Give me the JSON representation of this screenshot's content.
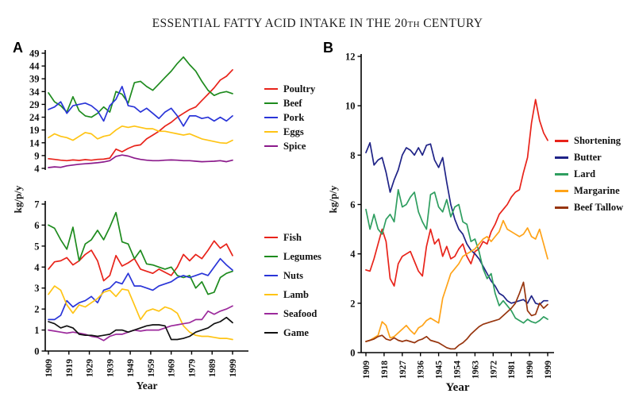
{
  "title": {
    "main": "ESSENTIAL FATTY ACID INTAKE IN THE 20",
    "sup": "TH",
    "tail": " CENTURY"
  },
  "panels": {
    "a": {
      "label": "A",
      "ylabel": "kg/p/y",
      "xlabel": "Year"
    },
    "b": {
      "label": "B",
      "ylabel": "kg/p/y",
      "xlabel": "Year"
    }
  },
  "chart_data": [
    {
      "id": "a_top",
      "type": "line",
      "panel": "A",
      "ylabel": "kg/p/y",
      "xlabel": "",
      "xlim": [
        1909,
        1999
      ],
      "ylim": [
        4,
        49
      ],
      "yticks": [
        4,
        9,
        14,
        19,
        24,
        29,
        34,
        39,
        44,
        49
      ],
      "xticks": [
        1909,
        1919,
        1929,
        1939,
        1949,
        1959,
        1969,
        1979,
        1989,
        1999
      ],
      "grid": false,
      "legend_position": "right",
      "x": [
        1909,
        1912,
        1915,
        1918,
        1921,
        1924,
        1927,
        1930,
        1933,
        1936,
        1939,
        1942,
        1945,
        1948,
        1951,
        1954,
        1957,
        1960,
        1963,
        1966,
        1969,
        1972,
        1975,
        1978,
        1981,
        1984,
        1987,
        1990,
        1993,
        1996,
        1999
      ],
      "series": [
        {
          "name": "Poultry",
          "color": "#e8231a",
          "values": [
            7.8,
            7.5,
            7.2,
            7.0,
            7.3,
            7.1,
            7.4,
            7.2,
            7.5,
            7.6,
            8.0,
            11.5,
            10.5,
            11.8,
            12.8,
            13.2,
            15.5,
            17.0,
            18.5,
            20.5,
            22.0,
            24.0,
            25.5,
            27.0,
            28.0,
            30.5,
            33.0,
            35.5,
            38.5,
            40.0,
            42.5
          ]
        },
        {
          "name": "Beef",
          "color": "#1e8b1e",
          "values": [
            33.5,
            30.0,
            28.5,
            26.0,
            32.0,
            26.5,
            24.5,
            24.0,
            25.5,
            28.0,
            26.0,
            34.0,
            33.0,
            29.5,
            37.5,
            38.0,
            36.0,
            34.5,
            37.0,
            39.5,
            42.0,
            45.0,
            47.5,
            44.5,
            42.0,
            38.0,
            34.5,
            32.5,
            33.5,
            34.0,
            33.2
          ]
        },
        {
          "name": "Pork",
          "color": "#2a35d8",
          "values": [
            27.0,
            28.0,
            30.0,
            25.5,
            28.5,
            29.0,
            29.5,
            28.5,
            26.5,
            22.5,
            28.5,
            31.0,
            36.0,
            28.5,
            28.0,
            26.0,
            27.5,
            25.5,
            23.5,
            26.0,
            27.5,
            24.5,
            20.5,
            24.5,
            24.5,
            23.5,
            24.0,
            22.5,
            24.0,
            22.5,
            24.5
          ]
        },
        {
          "name": "Eggs",
          "color": "#ffc414",
          "values": [
            16.0,
            17.5,
            16.5,
            16.0,
            15.0,
            16.5,
            18.0,
            17.5,
            15.5,
            16.5,
            17.0,
            19.0,
            20.5,
            20.0,
            20.5,
            20.0,
            19.5,
            19.5,
            18.5,
            18.5,
            18.0,
            17.5,
            17.0,
            17.5,
            16.5,
            15.5,
            15.0,
            14.5,
            14.0,
            13.8,
            15.0
          ]
        },
        {
          "name": "Spice",
          "color": "#8b1a8b",
          "values": [
            4.3,
            4.6,
            4.4,
            5.0,
            5.3,
            5.6,
            5.8,
            6.0,
            6.2,
            6.5,
            7.0,
            8.7,
            9.2,
            8.8,
            8.0,
            7.5,
            7.2,
            7.0,
            7.0,
            7.2,
            7.3,
            7.2,
            7.0,
            7.0,
            6.8,
            6.6,
            6.7,
            6.8,
            7.0,
            6.6,
            7.2
          ]
        }
      ]
    },
    {
      "id": "a_bottom",
      "type": "line",
      "panel": "A",
      "ylabel": "kg/p/y",
      "xlabel": "Year",
      "xlim": [
        1909,
        1999
      ],
      "ylim": [
        0,
        7
      ],
      "yticks": [
        0,
        1,
        2,
        3,
        4,
        5,
        6,
        7
      ],
      "xticks": [
        1909,
        1919,
        1929,
        1939,
        1949,
        1959,
        1969,
        1979,
        1989,
        1999
      ],
      "grid": false,
      "legend_position": "right",
      "x": [
        1909,
        1912,
        1915,
        1918,
        1921,
        1924,
        1927,
        1930,
        1933,
        1936,
        1939,
        1942,
        1945,
        1948,
        1951,
        1954,
        1957,
        1960,
        1963,
        1966,
        1969,
        1972,
        1975,
        1978,
        1981,
        1984,
        1987,
        1990,
        1993,
        1996,
        1999
      ],
      "series": [
        {
          "name": "Fish",
          "color": "#e8231a",
          "values": [
            3.9,
            4.25,
            4.3,
            4.45,
            4.1,
            4.3,
            4.6,
            4.8,
            4.3,
            3.35,
            3.6,
            4.55,
            4.05,
            4.2,
            4.4,
            3.9,
            3.8,
            3.7,
            3.9,
            3.75,
            3.6,
            4.0,
            4.6,
            4.3,
            4.6,
            4.4,
            4.8,
            5.25,
            4.9,
            5.1,
            4.55
          ]
        },
        {
          "name": "Legumes",
          "color": "#1e8b1e",
          "values": [
            6.0,
            5.85,
            5.3,
            4.85,
            5.9,
            4.3,
            5.1,
            5.3,
            5.75,
            5.3,
            5.9,
            6.6,
            5.2,
            5.1,
            4.4,
            4.8,
            4.15,
            4.1,
            4.0,
            3.9,
            4.0,
            3.6,
            3.5,
            3.6,
            3.0,
            3.3,
            2.7,
            2.8,
            3.5,
            3.7,
            3.8
          ]
        },
        {
          "name": "Nuts",
          "color": "#2a35d8",
          "values": [
            1.5,
            1.5,
            1.7,
            2.4,
            2.1,
            2.3,
            2.4,
            2.6,
            2.3,
            2.9,
            3.0,
            3.3,
            3.2,
            3.7,
            3.1,
            3.1,
            3.0,
            2.9,
            3.1,
            3.2,
            3.3,
            3.5,
            3.6,
            3.5,
            3.6,
            3.7,
            3.6,
            4.0,
            4.4,
            4.1,
            3.85
          ]
        },
        {
          "name": "Lamb",
          "color": "#ffc414",
          "values": [
            2.7,
            3.1,
            2.9,
            2.2,
            1.8,
            2.2,
            2.1,
            2.3,
            2.5,
            2.8,
            2.9,
            2.6,
            2.95,
            2.9,
            2.2,
            1.5,
            1.9,
            2.0,
            1.9,
            2.1,
            2.0,
            1.8,
            1.2,
            0.9,
            0.75,
            0.7,
            0.7,
            0.65,
            0.6,
            0.6,
            0.55
          ]
        },
        {
          "name": "Seafood",
          "color": "#9c2a9c",
          "values": [
            1.0,
            0.95,
            0.9,
            0.85,
            0.9,
            0.85,
            0.8,
            0.7,
            0.65,
            0.5,
            0.7,
            0.8,
            0.8,
            0.9,
            1.0,
            0.95,
            1.0,
            1.0,
            1.0,
            1.1,
            1.2,
            1.25,
            1.3,
            1.35,
            1.5,
            1.5,
            1.9,
            1.75,
            1.9,
            2.0,
            2.15
          ]
        },
        {
          "name": "Game",
          "color": "#111111",
          "values": [
            1.4,
            1.3,
            1.1,
            1.2,
            1.1,
            0.8,
            0.75,
            0.75,
            0.7,
            0.75,
            0.8,
            1.0,
            1.0,
            0.9,
            1.0,
            1.1,
            1.2,
            1.25,
            1.25,
            1.2,
            0.55,
            0.55,
            0.6,
            0.7,
            0.9,
            1.0,
            1.1,
            1.3,
            1.4,
            1.6,
            1.35
          ]
        }
      ]
    },
    {
      "id": "b",
      "type": "line",
      "panel": "B",
      "ylabel": "kg/p/y",
      "xlabel": "Year",
      "xlim": [
        1909,
        1999
      ],
      "ylim": [
        0,
        12
      ],
      "yticks": [
        0,
        2,
        4,
        6,
        8,
        10,
        12
      ],
      "xticks": [
        1909,
        1918,
        1927,
        1936,
        1945,
        1954,
        1963,
        1972,
        1981,
        1990,
        1999
      ],
      "grid": false,
      "legend_position": "right",
      "x": [
        1909,
        1911,
        1913,
        1915,
        1917,
        1919,
        1921,
        1923,
        1925,
        1927,
        1929,
        1931,
        1933,
        1935,
        1937,
        1939,
        1941,
        1943,
        1945,
        1947,
        1949,
        1951,
        1953,
        1955,
        1957,
        1959,
        1961,
        1963,
        1965,
        1967,
        1969,
        1971,
        1973,
        1975,
        1977,
        1979,
        1981,
        1983,
        1985,
        1987,
        1989,
        1991,
        1993,
        1995,
        1997,
        1999
      ],
      "series": [
        {
          "name": "Shortening",
          "color": "#e8231a",
          "values": [
            3.35,
            3.3,
            3.8,
            4.4,
            5.0,
            4.5,
            3.0,
            2.7,
            3.6,
            3.9,
            4.0,
            4.1,
            3.7,
            3.3,
            3.1,
            4.3,
            5.0,
            4.4,
            4.6,
            3.9,
            4.3,
            3.8,
            3.9,
            4.2,
            4.4,
            3.9,
            3.6,
            4.1,
            4.2,
            4.5,
            4.4,
            4.9,
            5.2,
            5.6,
            5.8,
            6.0,
            6.3,
            6.5,
            6.6,
            7.3,
            7.9,
            9.3,
            10.25,
            9.4,
            8.9,
            8.6
          ]
        },
        {
          "name": "Butter",
          "color": "#1f2387",
          "values": [
            8.1,
            8.5,
            7.6,
            7.8,
            7.9,
            7.3,
            6.5,
            7.0,
            7.4,
            8.0,
            8.3,
            8.2,
            8.0,
            8.3,
            8.0,
            8.4,
            8.45,
            7.8,
            7.5,
            7.9,
            6.9,
            6.0,
            5.4,
            5.0,
            4.8,
            4.4,
            4.15,
            4.0,
            3.8,
            3.5,
            3.2,
            2.9,
            2.7,
            2.4,
            2.3,
            2.1,
            2.0,
            2.05,
            2.1,
            2.15,
            2.0,
            2.3,
            2.0,
            1.95,
            2.1,
            2.1
          ]
        },
        {
          "name": "Lard",
          "color": "#2f9e60",
          "values": [
            5.8,
            5.0,
            5.6,
            5.0,
            4.8,
            5.4,
            5.6,
            5.3,
            6.6,
            5.9,
            6.0,
            6.3,
            6.5,
            5.7,
            5.3,
            5.0,
            6.4,
            6.5,
            5.9,
            5.7,
            6.2,
            5.5,
            5.9,
            6.0,
            5.3,
            5.2,
            4.5,
            4.6,
            4.1,
            3.4,
            3.0,
            3.2,
            2.4,
            1.9,
            2.1,
            1.9,
            1.7,
            1.4,
            1.3,
            1.2,
            1.35,
            1.25,
            1.2,
            1.3,
            1.45,
            1.35
          ]
        },
        {
          "name": "Margarine",
          "color": "#ffa318",
          "values": [
            0.45,
            0.5,
            0.6,
            0.7,
            1.25,
            1.1,
            0.6,
            0.65,
            0.8,
            0.95,
            1.1,
            0.9,
            0.75,
            1.0,
            1.1,
            1.3,
            1.4,
            1.3,
            1.2,
            2.2,
            2.7,
            3.2,
            3.4,
            3.6,
            3.9,
            4.0,
            4.1,
            4.2,
            4.4,
            4.6,
            4.7,
            4.5,
            4.7,
            4.9,
            5.35,
            5.0,
            4.9,
            4.8,
            4.7,
            4.8,
            5.05,
            4.7,
            4.6,
            5.0,
            4.4,
            3.8
          ]
        },
        {
          "name": "Beef Tallow",
          "color": "#97350e",
          "values": [
            0.45,
            0.5,
            0.55,
            0.65,
            0.7,
            0.55,
            0.5,
            0.6,
            0.5,
            0.45,
            0.5,
            0.45,
            0.4,
            0.5,
            0.55,
            0.65,
            0.5,
            0.45,
            0.4,
            0.3,
            0.2,
            0.15,
            0.15,
            0.3,
            0.4,
            0.55,
            0.75,
            0.9,
            1.05,
            1.15,
            1.2,
            1.25,
            1.3,
            1.35,
            1.5,
            1.65,
            1.8,
            2.0,
            2.4,
            2.85,
            1.7,
            1.5,
            1.55,
            2.0,
            1.8,
            1.95
          ]
        }
      ]
    }
  ]
}
